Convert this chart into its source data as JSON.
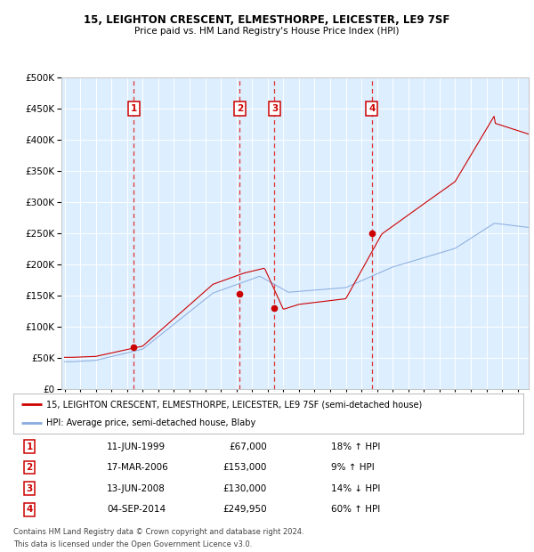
{
  "title": "15, LEIGHTON CRESCENT, ELMESTHORPE, LEICESTER, LE9 7SF",
  "subtitle": "Price paid vs. HM Land Registry's House Price Index (HPI)",
  "legend_property": "15, LEIGHTON CRESCENT, ELMESTHORPE, LEICESTER, LE9 7SF (semi-detached house)",
  "legend_hpi": "HPI: Average price, semi-detached house, Blaby",
  "sales": [
    {
      "num": 1,
      "date": "11-JUN-1999",
      "year": 1999.44,
      "price": 67000,
      "pct": "18%",
      "dir": "↑"
    },
    {
      "num": 2,
      "date": "17-MAR-2006",
      "year": 2006.21,
      "price": 153000,
      "pct": "9%",
      "dir": "↑"
    },
    {
      "num": 3,
      "date": "13-JUN-2008",
      "year": 2008.44,
      "price": 130000,
      "pct": "14%",
      "dir": "↓"
    },
    {
      "num": 4,
      "date": "04-SEP-2014",
      "year": 2014.67,
      "price": 249950,
      "pct": "60%",
      "dir": "↑"
    }
  ],
  "property_color": "#cc0000",
  "hpi_color": "#88aadd",
  "bg_color": "#ddeeff",
  "grid_color": "#ffffff",
  "sale_marker_color": "#cc0000",
  "vline_color": "#dd3333",
  "box_color": "#cc0000",
  "footnote1": "Contains HM Land Registry data © Crown copyright and database right 2024.",
  "footnote2": "This data is licensed under the Open Government Licence v3.0.",
  "ylim": [
    0,
    500000
  ],
  "yticks": [
    0,
    50000,
    100000,
    150000,
    200000,
    250000,
    300000,
    350000,
    400000,
    450000,
    500000
  ],
  "start_year": 1995,
  "end_year": 2024
}
